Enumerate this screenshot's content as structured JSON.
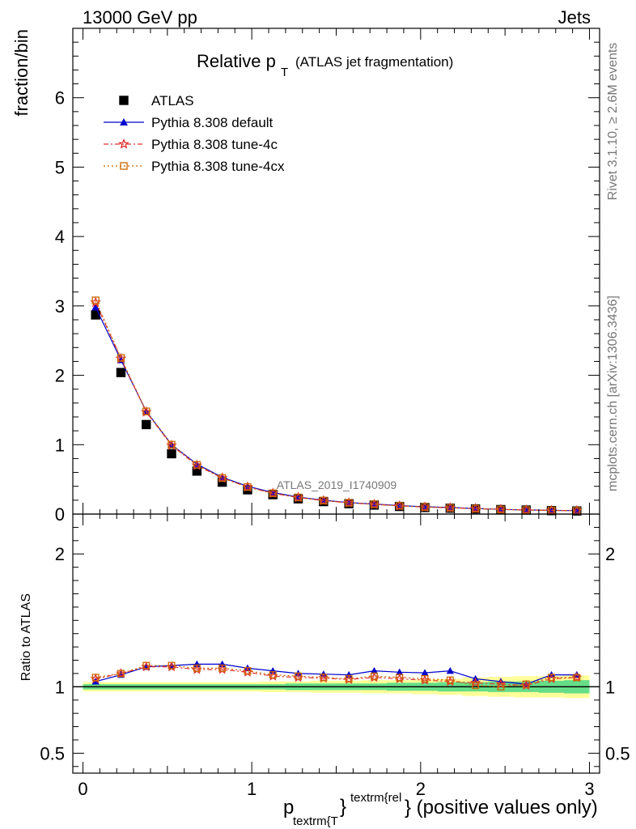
{
  "header": {
    "left": "13000 GeV pp",
    "right": "Jets"
  },
  "side_labels": {
    "rivet": "Rivet 3.1.10, ≥ 2.6M events",
    "mcplots": "mcplots.cern.ch [arXiv:1306.3436]"
  },
  "chart_data": {
    "type": "line",
    "title": "Relative p",
    "title_sub": "T",
    "title_suffix": "(ATLAS jet fragmentation)",
    "watermark": "ATLAS_2019_I1740909",
    "ylabel": "fraction/bin",
    "ratio_ylabel": "Ratio to ATLAS",
    "xlabel": {
      "p": "p",
      "sub": "textrm{T",
      "brace": "}",
      "sup": "textrm{rel",
      "suffix": "} (positive values only)"
    },
    "xlim": [
      -0.06,
      3.06
    ],
    "ylim_main": [
      0,
      7
    ],
    "ylim_ratio": [
      0.35,
      2.3
    ],
    "x_ticks": [
      0,
      1,
      2,
      3
    ],
    "x_tick_labels": [
      "0",
      "1",
      "2",
      "3"
    ],
    "y_ticks_main": [
      0,
      1,
      2,
      3,
      4,
      5,
      6
    ],
    "y_tick_labels_main": [
      "0",
      "1",
      "2",
      "3",
      "4",
      "5",
      "6"
    ],
    "y_ticks_ratio": [
      0.5,
      1,
      2
    ],
    "y_tick_labels_ratio": [
      "0.5",
      "1",
      "2"
    ],
    "x": [
      0.075,
      0.225,
      0.375,
      0.525,
      0.675,
      0.825,
      0.975,
      1.125,
      1.275,
      1.425,
      1.575,
      1.725,
      1.875,
      2.025,
      2.175,
      2.325,
      2.475,
      2.625,
      2.775,
      2.925
    ],
    "series": [
      {
        "name": "ATLAS",
        "color": "#000000",
        "marker": "square",
        "values": [
          2.87,
          2.04,
          1.29,
          0.87,
          0.62,
          0.46,
          0.35,
          0.28,
          0.22,
          0.18,
          0.15,
          0.13,
          0.11,
          0.095,
          0.085,
          0.075,
          0.065,
          0.058,
          0.05,
          0.045
        ],
        "ratio": [
          1,
          1,
          1,
          1,
          1,
          1,
          1,
          1,
          1,
          1,
          1,
          1,
          1,
          1,
          1,
          1,
          1,
          1,
          1,
          1
        ]
      },
      {
        "name": "Pythia 8.308 default",
        "color": "#0000cc",
        "marker": "triangle",
        "dash": "",
        "values": [
          2.98,
          2.22,
          1.48,
          1.0,
          0.72,
          0.53,
          0.4,
          0.31,
          0.245,
          0.2,
          0.166,
          0.145,
          0.122,
          0.105,
          0.094,
          0.08,
          0.068,
          0.059,
          0.054,
          0.049
        ],
        "ratio": [
          1.04,
          1.09,
          1.15,
          1.16,
          1.17,
          1.17,
          1.14,
          1.12,
          1.1,
          1.095,
          1.09,
          1.12,
          1.11,
          1.105,
          1.12,
          1.06,
          1.04,
          1.02,
          1.09,
          1.09
        ]
      },
      {
        "name": "Pythia 8.308 tune-4c",
        "color": "#e03030",
        "marker": "star",
        "dash": "6,3,2,3",
        "values": [
          3.05,
          2.24,
          1.47,
          0.99,
          0.7,
          0.52,
          0.39,
          0.3,
          0.238,
          0.194,
          0.162,
          0.14,
          0.118,
          0.1,
          0.09,
          0.078,
          0.066,
          0.058,
          0.052,
          0.048
        ],
        "ratio": [
          1.06,
          1.1,
          1.15,
          1.15,
          1.13,
          1.13,
          1.11,
          1.08,
          1.07,
          1.065,
          1.055,
          1.07,
          1.06,
          1.05,
          1.04,
          1.03,
          1.02,
          1.01,
          1.06,
          1.07
        ]
      },
      {
        "name": "Pythia 8.308 tune-4cx",
        "color": "#cc6600",
        "marker": "open-square",
        "dash": "2,3",
        "values": [
          3.08,
          2.25,
          1.48,
          1.0,
          0.71,
          0.52,
          0.39,
          0.3,
          0.24,
          0.195,
          0.163,
          0.141,
          0.119,
          0.101,
          0.091,
          0.079,
          0.067,
          0.058,
          0.052,
          0.048
        ],
        "ratio": [
          1.07,
          1.1,
          1.16,
          1.16,
          1.14,
          1.14,
          1.12,
          1.09,
          1.08,
          1.07,
          1.06,
          1.08,
          1.07,
          1.06,
          1.05,
          1.01,
          1.0,
          1.02,
          1.07,
          1.07
        ]
      }
    ],
    "ratio_band": {
      "inner_color": "#66dd88",
      "outer_color": "#ffff99",
      "inner_half": [
        0.02,
        0.02,
        0.02,
        0.02,
        0.02,
        0.02,
        0.02,
        0.02,
        0.025,
        0.025,
        0.025,
        0.025,
        0.03,
        0.03,
        0.035,
        0.035,
        0.04,
        0.04,
        0.045,
        0.05
      ],
      "outer_half": [
        0.035,
        0.035,
        0.035,
        0.035,
        0.035,
        0.035,
        0.035,
        0.04,
        0.04,
        0.045,
        0.045,
        0.05,
        0.05,
        0.055,
        0.06,
        0.07,
        0.075,
        0.08,
        0.08,
        0.085
      ]
    }
  }
}
